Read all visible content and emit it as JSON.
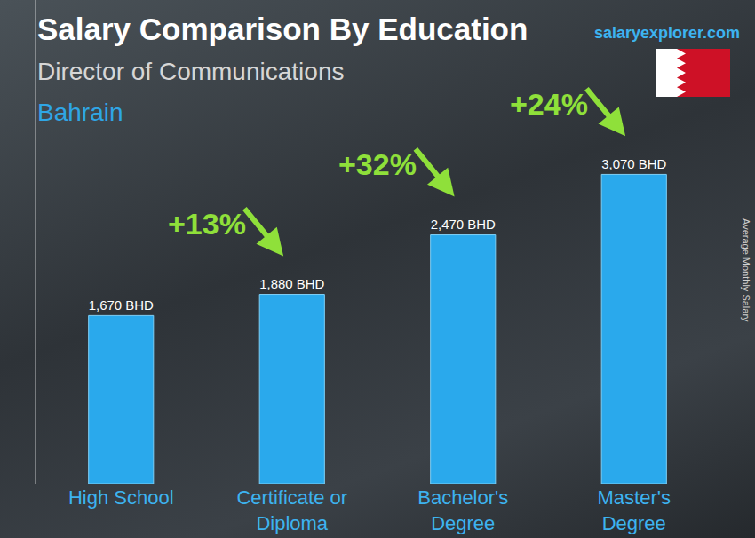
{
  "chart_data": {
    "type": "bar",
    "title": "Salary Comparison By Education",
    "subtitle": "Director of Communications",
    "location": "Bahrain",
    "source": "salaryexplorer.com",
    "y_label": "Average Monthly Salary",
    "categories": [
      "High School",
      "Certificate or Diploma",
      "Bachelor's Degree",
      "Master's Degree"
    ],
    "values": [
      1670,
      1880,
      2470,
      3070
    ],
    "value_labels": [
      "1,670 BHD",
      "1,880 BHD",
      "2,470 BHD",
      "3,070 BHD"
    ],
    "data_labels": true,
    "annotations": [
      "+13%",
      "+32%",
      "+24%"
    ],
    "color": "#2aa9ec",
    "ylim": [
      0,
      4800
    ],
    "tick_labels": "x",
    "grid": false
  }
}
